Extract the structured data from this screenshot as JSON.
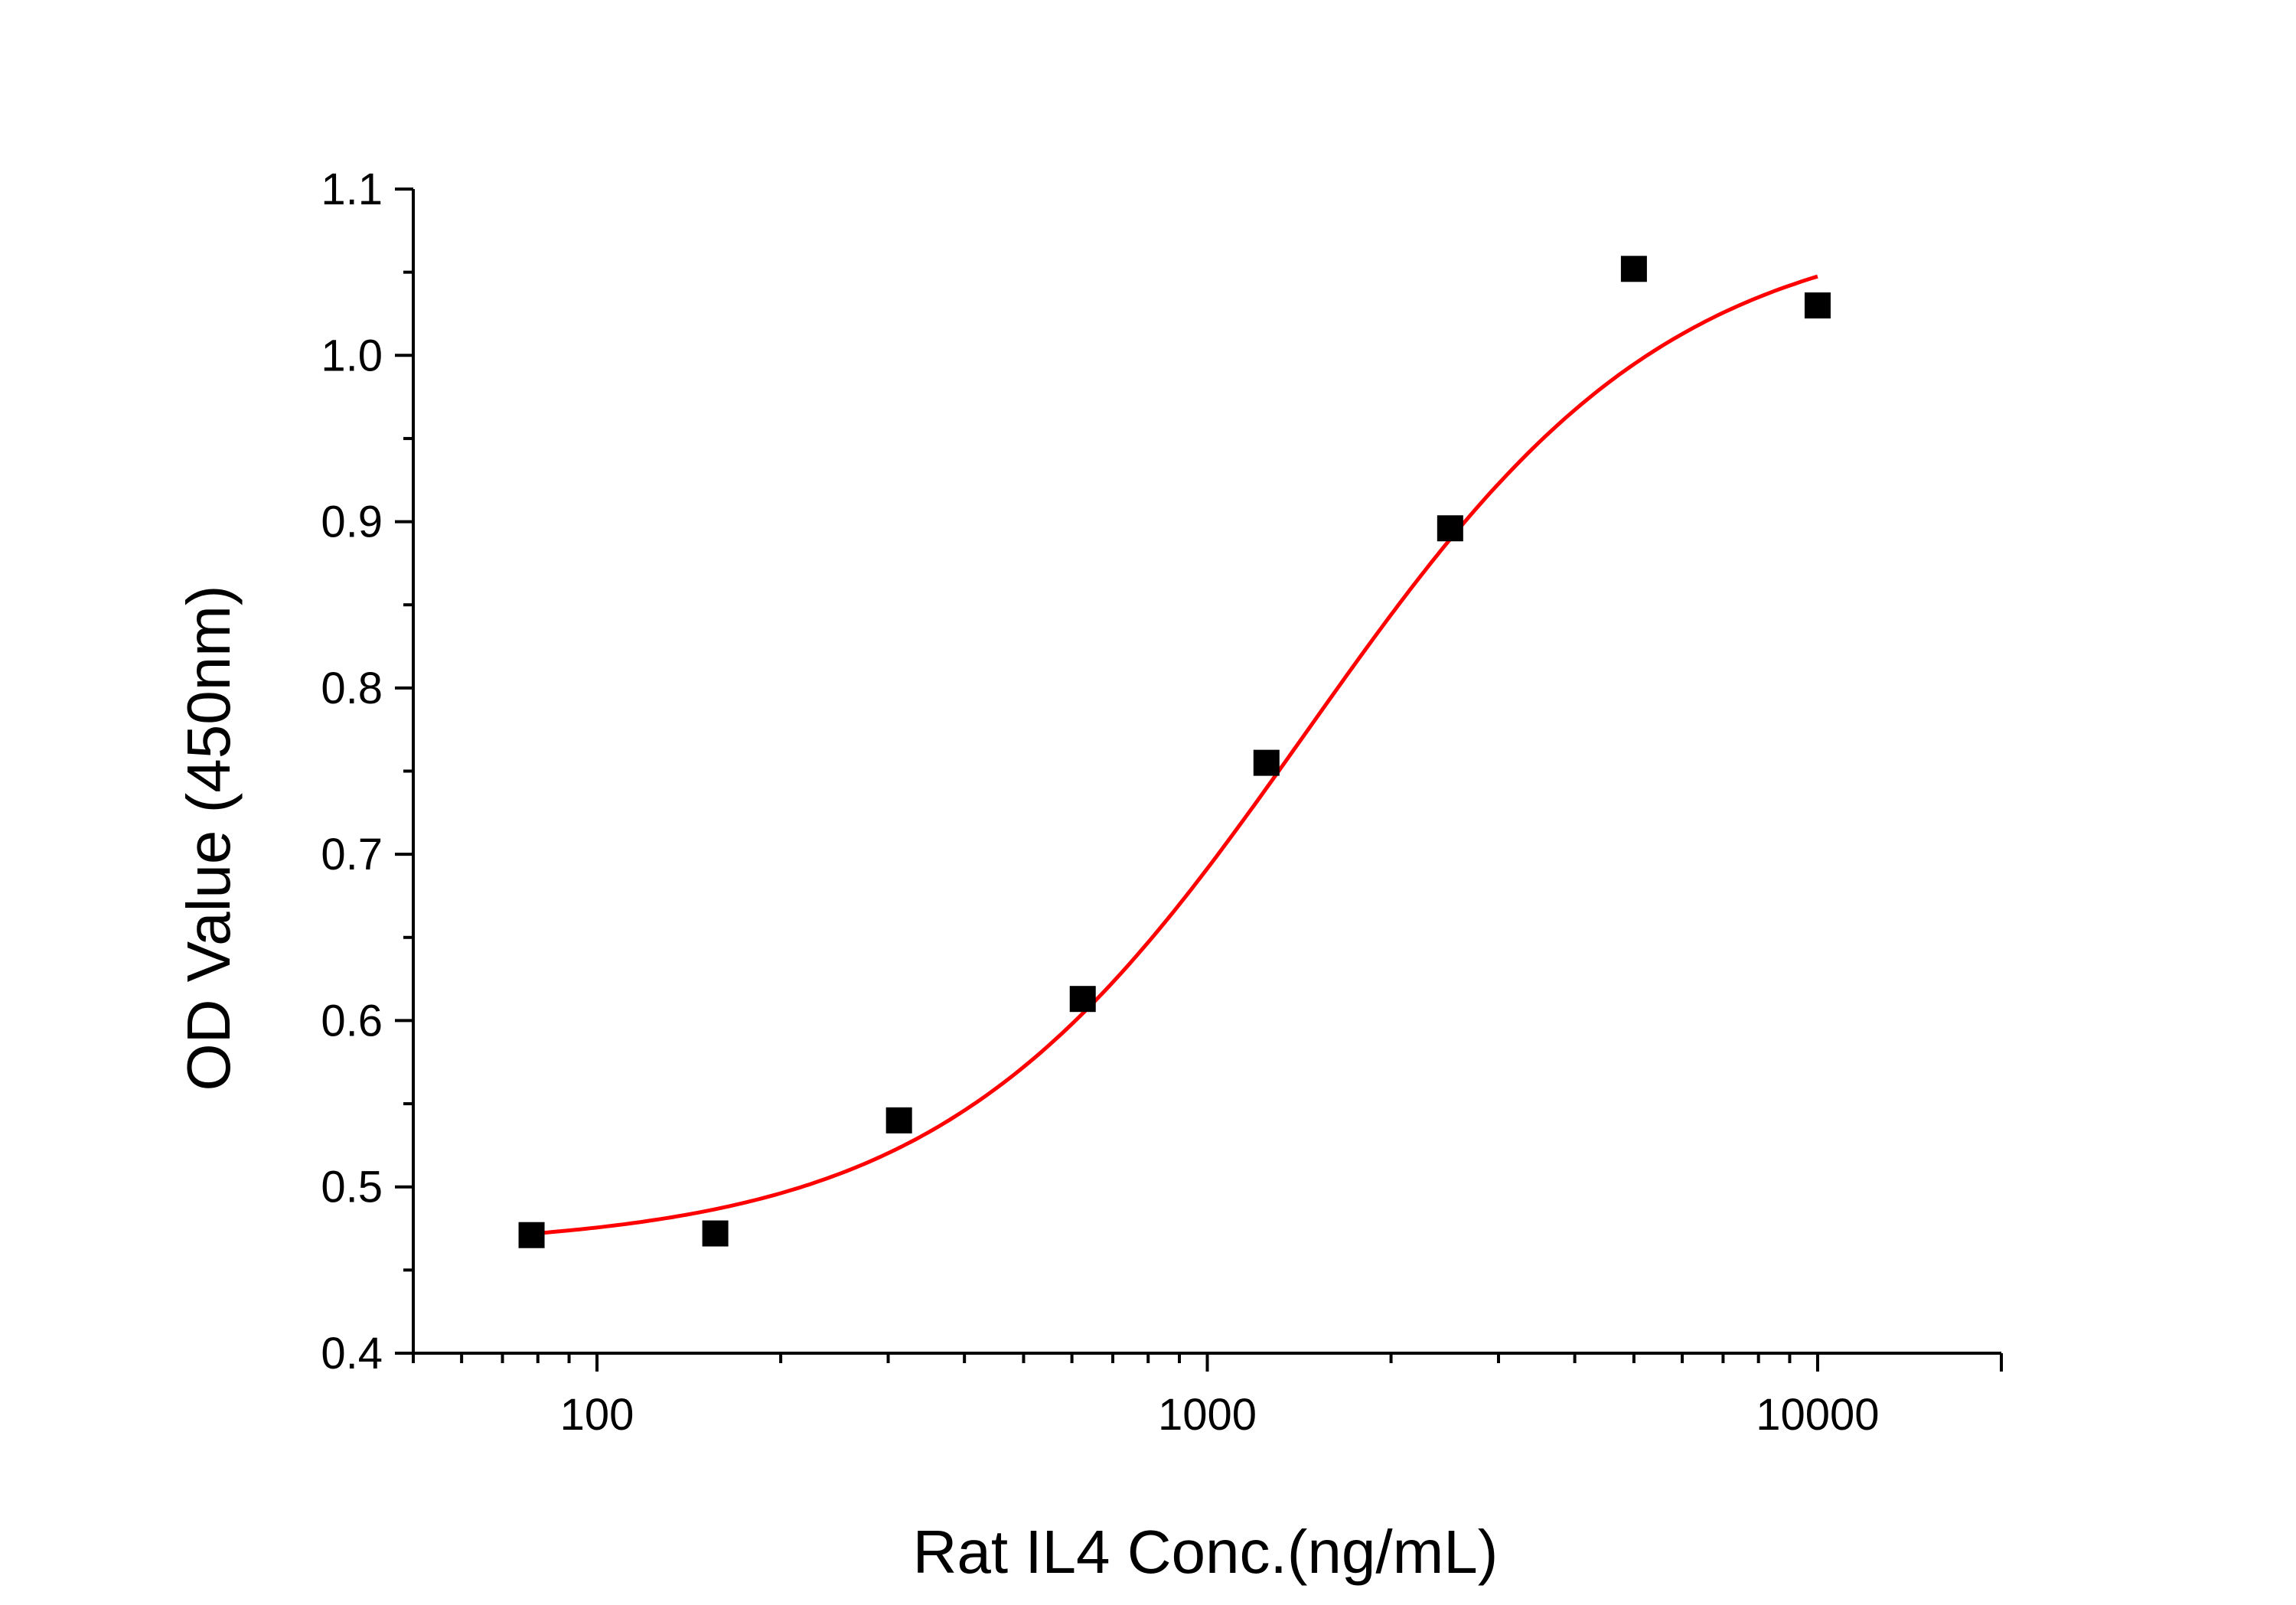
{
  "chart_data": {
    "type": "scatter",
    "title": "",
    "xlabel": "Rat IL4 Conc.(ng/mL)",
    "ylabel": "OD Value (450nm)",
    "xscale": "log",
    "xlim": [
      50,
      20000
    ],
    "ylim": [
      0.4,
      1.1
    ],
    "xticks": [
      100,
      1000,
      10000
    ],
    "xtick_labels": [
      "100",
      "1000",
      "10000"
    ],
    "yticks": [
      0.4,
      0.5,
      0.6,
      0.7,
      0.8,
      0.9,
      1.0,
      1.1
    ],
    "ytick_labels": [
      "0.4",
      "0.5",
      "0.6",
      "0.7",
      "0.8",
      "0.9",
      "1.0",
      "1.1"
    ],
    "grid": false,
    "legend": "none",
    "series": [
      {
        "kind": "points",
        "marker": "square",
        "color": "#000000",
        "x": [
          78.125,
          156.25,
          312.5,
          625,
          1250,
          2500,
          5000,
          10000
        ],
        "y": [
          0.471,
          0.472,
          0.54,
          0.613,
          0.755,
          0.896,
          1.052,
          1.03
        ]
      },
      {
        "kind": "fit",
        "model": "4PL",
        "color": "#ff0000",
        "x_range": [
          78.125,
          10000
        ],
        "params": {
          "bottom": 0.463,
          "top": 1.083,
          "ec50": 1450,
          "hill": 1.45
        }
      }
    ]
  }
}
